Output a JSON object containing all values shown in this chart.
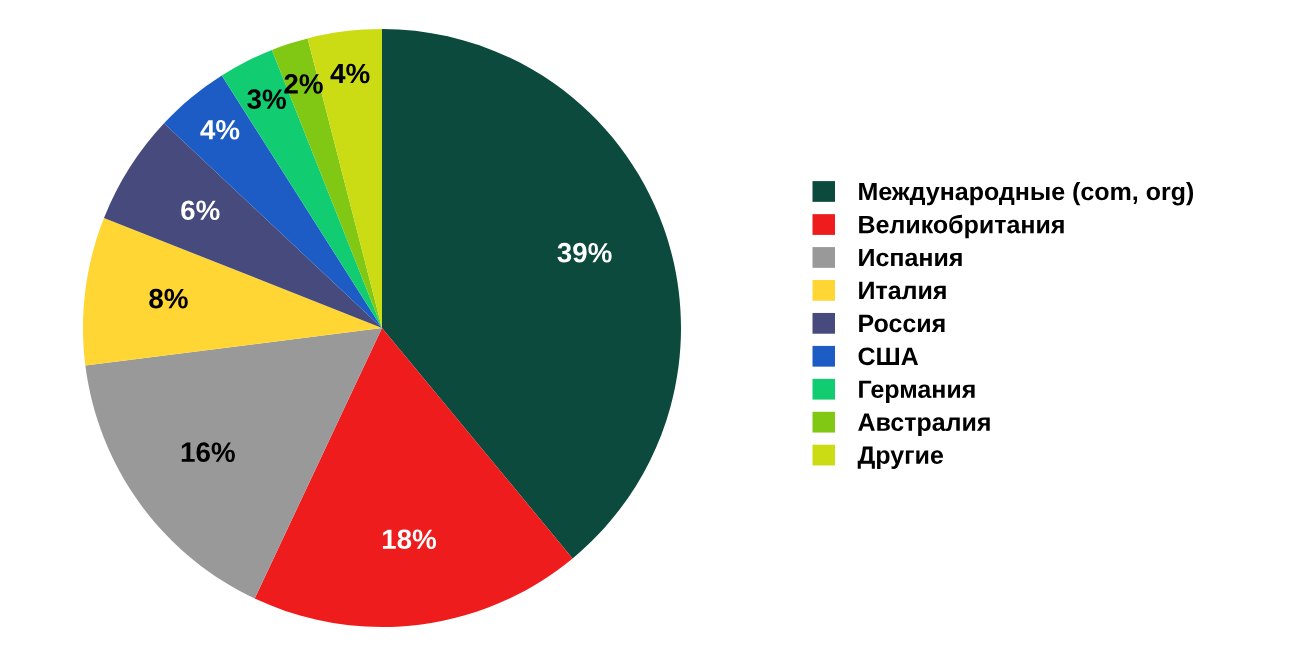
{
  "chart_data": {
    "type": "pie",
    "categories": [
      "Международные (com, org)",
      "Великобритания",
      "Испания",
      "Италия",
      "Россия",
      "США",
      "Германия",
      "Австралия",
      "Другие"
    ],
    "values": [
      39,
      18,
      16,
      8,
      6,
      4,
      3,
      2,
      4
    ],
    "value_labels": [
      "39%",
      "18%",
      "16%",
      "8%",
      "6%",
      "4%",
      "3%",
      "2%",
      "4%"
    ],
    "colors": [
      "#0b4a3c",
      "#ee1c1c",
      "#999999",
      "#ffd633",
      "#464a7c",
      "#1c5cc4",
      "#12cc72",
      "#80c814",
      "#ccdc14"
    ],
    "legend": "right"
  }
}
